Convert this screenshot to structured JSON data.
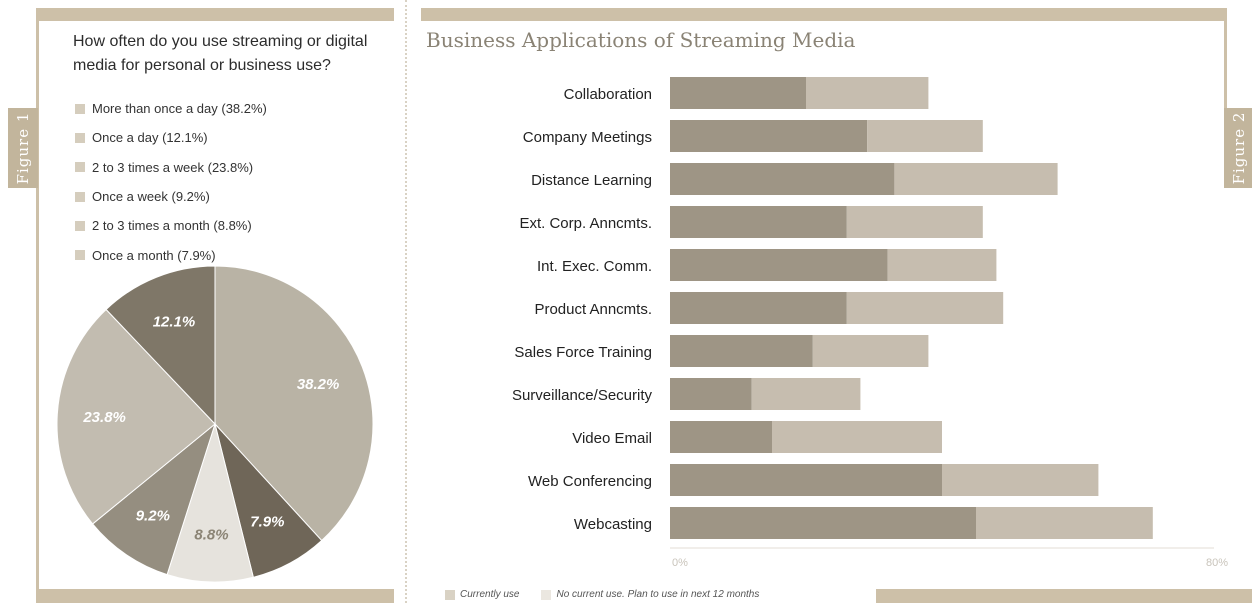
{
  "figure1": {
    "tab_label": "Figure 1",
    "question": "How often do you use streaming or digital media for personal or business use?",
    "legend": [
      "More than once a day (38.2%)",
      "Once a day (12.1%)",
      "2 to 3 times a week (23.8%)",
      "Once a week (9.2%)",
      "2 to 3 times a month (8.8%)",
      "Once a month (7.9%)"
    ]
  },
  "figure2": {
    "tab_label": "Figure 2",
    "legend": {
      "current": "Currently use",
      "planned": "No current use. Plan to use in next 12 months"
    }
  },
  "colors": {
    "band": "#cdc0a8",
    "tab": "#c2b59c",
    "bar_dark": "#9e9585",
    "bar_light": "#c6bdaf",
    "pie_38": "#b9b3a5",
    "pie_12": "#7f7768",
    "pie_23": "#c2bcb0",
    "pie_9": "#958e80",
    "pie_8": "#e6e3dd",
    "pie_7": "#6f6658"
  },
  "chart_data": [
    {
      "type": "pie",
      "title": "",
      "slices": [
        {
          "label": "38.2%",
          "value": 38.2,
          "color": "#b9b3a5"
        },
        {
          "label": "7.9%",
          "value": 7.9,
          "color": "#6f6658"
        },
        {
          "label": "8.8%",
          "value": 8.8,
          "color": "#e6e3dd"
        },
        {
          "label": "9.2%",
          "value": 9.2,
          "color": "#958e80"
        },
        {
          "label": "23.8%",
          "value": 23.8,
          "color": "#c2bcb0"
        },
        {
          "label": "12.1%",
          "value": 12.1,
          "color": "#7f7768"
        }
      ]
    },
    {
      "type": "bar",
      "orientation": "horizontal",
      "stacked": true,
      "title": "Business Applications of Streaming Media",
      "categories": [
        "Collaboration",
        "Company Meetings",
        "Distance Learning",
        "Ext. Corp. Anncmts.",
        "Int. Exec. Comm.",
        "Product Anncmts.",
        "Sales Force Training",
        "Surveillance/Security",
        "Video Email",
        "Web Conferencing",
        "Webcasting"
      ],
      "series": [
        {
          "name": "Currently use",
          "values": [
            20,
            29,
            33,
            26,
            32,
            26,
            21,
            12,
            15,
            40,
            45
          ],
          "color": "#9e9585"
        },
        {
          "name": "No current use. Plan to use in next 12 months",
          "values": [
            18,
            17,
            24,
            20,
            16,
            23,
            17,
            16,
            25,
            23,
            26
          ],
          "color": "#c6bdaf"
        }
      ],
      "xlim": [
        0,
        80
      ],
      "x_ticks": [
        "0%",
        "80%"
      ]
    }
  ]
}
